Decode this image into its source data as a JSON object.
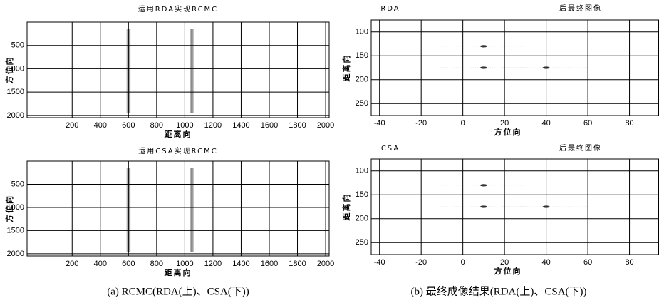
{
  "chart_data": [
    {
      "type": "image",
      "title_parts": [
        "运用RDA实现RCMC"
      ],
      "xlabel": "距离向",
      "ylabel": "方位向",
      "xlim": [
        -120,
        2025
      ],
      "xticks": [
        200,
        400,
        600,
        800,
        1000,
        1200,
        1400,
        1600,
        1800,
        2000
      ],
      "ylim": [
        0,
        2048
      ],
      "yticks": [
        500,
        1000,
        1500,
        2000
      ],
      "y_reversed": true,
      "grid": true,
      "streaks_x": [
        600,
        1050
      ]
    },
    {
      "type": "image",
      "title_parts": [
        "运用CSA实现RCMC"
      ],
      "xlabel": "距离向",
      "ylabel": "方位向",
      "xlim": [
        -120,
        2025
      ],
      "xticks": [
        200,
        400,
        600,
        800,
        1000,
        1200,
        1400,
        1600,
        1800,
        2000
      ],
      "ylim": [
        0,
        2048
      ],
      "yticks": [
        500,
        1000,
        1500,
        2000
      ],
      "y_reversed": true,
      "grid": true,
      "streaks_x": [
        600,
        1050
      ]
    },
    {
      "type": "image",
      "title_parts": [
        "RDA",
        "后最终图像"
      ],
      "xlabel": "方位向",
      "ylabel": "距离向",
      "xlim": [
        -44,
        94
      ],
      "xticks": [
        -40,
        -20,
        0,
        20,
        40,
        60,
        80
      ],
      "ylim": [
        75,
        275
      ],
      "yticks": [
        100,
        150,
        200,
        250
      ],
      "y_reversed": true,
      "grid": true,
      "targets": {
        "x": [
          10,
          10,
          40
        ],
        "y": [
          130,
          175,
          175
        ]
      }
    },
    {
      "type": "image",
      "title_parts": [
        "CSA",
        "后最终图像"
      ],
      "xlabel": "方位向",
      "ylabel": "距离向",
      "xlim": [
        -44,
        94
      ],
      "xticks": [
        -40,
        -20,
        0,
        20,
        40,
        60,
        80
      ],
      "ylim": [
        75,
        275
      ],
      "yticks": [
        100,
        150,
        200,
        250
      ],
      "y_reversed": true,
      "grid": true,
      "targets": {
        "x": [
          10,
          10,
          40
        ],
        "y": [
          130,
          175,
          175
        ]
      }
    }
  ],
  "captions": [
    "(a) RCMC(RDA(上)、CSA(下))",
    "(b)  最终成像结果(RDA(上)、CSA(下))"
  ]
}
